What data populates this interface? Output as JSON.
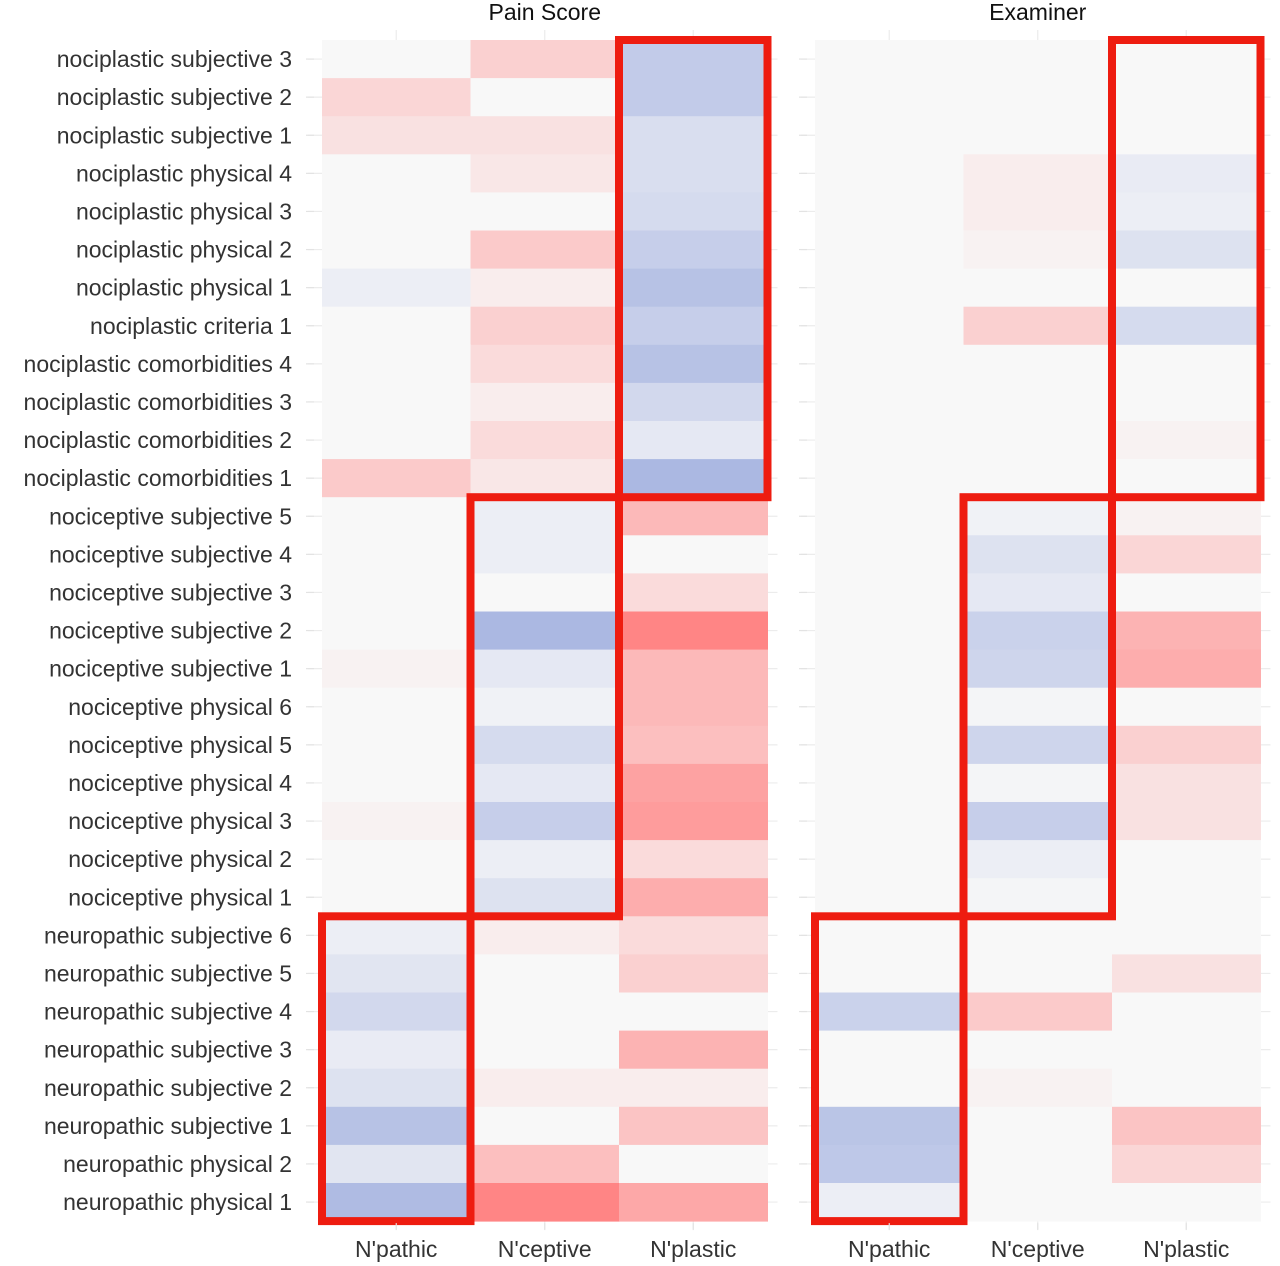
{
  "chart_data": {
    "type": "heatmap",
    "color_scale": {
      "low": "#abb8e2",
      "mid": "#f8f8f8",
      "high": "#ff8585"
    },
    "highlight_color": "#ee1c10",
    "rows": [
      "nociplastic subjective 3",
      "nociplastic subjective 2",
      "nociplastic subjective 1",
      "nociplastic physical 4",
      "nociplastic physical 3",
      "nociplastic physical 2",
      "nociplastic physical 1",
      "nociplastic criteria 1",
      "nociplastic comorbidities 4",
      "nociplastic comorbidities 3",
      "nociplastic comorbidities 2",
      "nociplastic comorbidities 1",
      "nociceptive subjective 5",
      "nociceptive subjective 4",
      "nociceptive subjective 3",
      "nociceptive subjective 2",
      "nociceptive subjective 1",
      "nociceptive physical 6",
      "nociceptive physical 5",
      "nociceptive physical 4",
      "nociceptive physical 3",
      "nociceptive physical 2",
      "nociceptive physical 1",
      "neuropathic subjective 6",
      "neuropathic subjective 5",
      "neuropathic subjective 4",
      "neuropathic subjective 3",
      "neuropathic subjective 2",
      "neuropathic subjective 1",
      "neuropathic physical 2",
      "neuropathic physical 1"
    ],
    "columns": [
      "N'pathic",
      "N'ceptive",
      "N'plastic"
    ],
    "panels": [
      {
        "title": "Pain Score",
        "values": [
          [
            0.0,
            0.35,
            -0.7
          ],
          [
            0.3,
            0.0,
            -0.7
          ],
          [
            0.2,
            0.2,
            -0.4
          ],
          [
            0.0,
            0.15,
            -0.4
          ],
          [
            0.0,
            0.0,
            -0.45
          ],
          [
            0.0,
            0.4,
            -0.65
          ],
          [
            -0.15,
            0.1,
            -0.85
          ],
          [
            0.0,
            0.35,
            -0.65
          ],
          [
            0.0,
            0.25,
            -0.85
          ],
          [
            0.0,
            0.1,
            -0.5
          ],
          [
            0.0,
            0.25,
            -0.25
          ],
          [
            0.4,
            0.15,
            -1.0
          ],
          [
            0.0,
            -0.15,
            0.55
          ],
          [
            0.0,
            -0.15,
            0.0
          ],
          [
            0.0,
            0.0,
            0.25
          ],
          [
            0.0,
            -1.0,
            1.0
          ],
          [
            0.05,
            -0.25,
            0.55
          ],
          [
            0.0,
            -0.1,
            0.55
          ],
          [
            0.0,
            -0.45,
            0.5
          ],
          [
            0.0,
            -0.25,
            0.75
          ],
          [
            0.05,
            -0.65,
            0.8
          ],
          [
            0.0,
            -0.15,
            0.25
          ],
          [
            0.0,
            -0.35,
            0.65
          ],
          [
            -0.15,
            0.1,
            0.25
          ],
          [
            -0.3,
            0.0,
            0.35
          ],
          [
            -0.5,
            0.0,
            0.0
          ],
          [
            -0.2,
            0.0,
            0.6
          ],
          [
            -0.35,
            0.1,
            0.1
          ],
          [
            -0.85,
            0.0,
            0.45
          ],
          [
            -0.3,
            0.5,
            0.0
          ],
          [
            -0.95,
            1.0,
            0.7
          ]
        ]
      },
      {
        "title": "Examiner",
        "values": [
          [
            0.0,
            0.0,
            0.0
          ],
          [
            0.0,
            0.0,
            0.0
          ],
          [
            0.0,
            0.0,
            0.0
          ],
          [
            0.0,
            0.1,
            -0.2
          ],
          [
            0.0,
            0.1,
            -0.15
          ],
          [
            0.0,
            0.05,
            -0.35
          ],
          [
            0.0,
            0.0,
            0.0
          ],
          [
            0.0,
            0.35,
            -0.45
          ],
          [
            0.0,
            0.0,
            0.0
          ],
          [
            0.0,
            0.0,
            0.0
          ],
          [
            0.0,
            0.0,
            0.05
          ],
          [
            0.0,
            0.0,
            0.0
          ],
          [
            0.0,
            -0.1,
            0.05
          ],
          [
            0.0,
            -0.35,
            0.3
          ],
          [
            0.0,
            -0.25,
            0.0
          ],
          [
            0.0,
            -0.6,
            0.6
          ],
          [
            0.0,
            -0.55,
            0.65
          ],
          [
            0.0,
            -0.05,
            0.0
          ],
          [
            0.0,
            -0.55,
            0.35
          ],
          [
            0.0,
            -0.05,
            0.2
          ],
          [
            0.0,
            -0.65,
            0.2
          ],
          [
            0.0,
            -0.15,
            0.0
          ],
          [
            0.0,
            -0.05,
            0.0
          ],
          [
            0.0,
            0.0,
            0.0
          ],
          [
            0.0,
            0.0,
            0.2
          ],
          [
            -0.6,
            0.4,
            0.0
          ],
          [
            0.0,
            0.0,
            0.0
          ],
          [
            0.0,
            0.05,
            0.0
          ],
          [
            -0.8,
            0.0,
            0.45
          ],
          [
            -0.75,
            0.0,
            0.3
          ],
          [
            -0.15,
            0.0,
            0.0
          ]
        ]
      }
    ],
    "highlights": [
      {
        "column": 2,
        "row_start": 0,
        "row_end": 11
      },
      {
        "column": 1,
        "row_start": 12,
        "row_end": 22
      },
      {
        "column": 0,
        "row_start": 23,
        "row_end": 30
      }
    ]
  }
}
